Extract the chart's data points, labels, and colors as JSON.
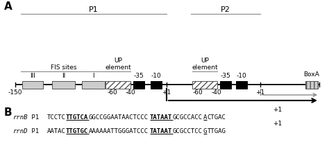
{
  "fig_width": 4.74,
  "fig_height": 2.15,
  "dpi": 100,
  "panel_A_label": "A",
  "panel_B_label": "B",
  "p1_label": "P1",
  "p2_label": "P2",
  "fis_label": "FIS sites",
  "up1_label": "UP\nelement",
  "up2_label": "UP\nelement",
  "boxa_label": "BoxA",
  "fis_labels": [
    "III",
    "II",
    "I"
  ],
  "minus35_1": "-35",
  "minus10_1": "-10",
  "plus1_1": "+1",
  "minus60_1": "-60",
  "minus40_1": "-40",
  "minus150_1": "-150",
  "minus35_2": "-35",
  "minus10_2": "-10",
  "plus1_2": "+1",
  "minus60_2": "-60",
  "minus40_2": "-40",
  "bg_color": "#ffffff",
  "rrnB_parts": [
    {
      "text": "TCCTC",
      "bold": false,
      "ul": false
    },
    {
      "text": "TTGTCA",
      "bold": true,
      "ul": true
    },
    {
      "text": "GGCCGGAATAACTCCC",
      "bold": false,
      "ul": false
    },
    {
      "text": "TATAAT",
      "bold": true,
      "ul": true
    },
    {
      "text": "GCGCCACC",
      "bold": false,
      "ul": false
    },
    {
      "text": "A",
      "bold": false,
      "ul": true
    },
    {
      "text": "CTGAC",
      "bold": false,
      "ul": false
    }
  ],
  "rrnD_parts": [
    {
      "text": "AATAC",
      "bold": false,
      "ul": false
    },
    {
      "text": "TTGTGC",
      "bold": true,
      "ul": true
    },
    {
      "text": "AAAAAATTGGGATCCC",
      "bold": false,
      "ul": false
    },
    {
      "text": "TATAAT",
      "bold": true,
      "ul": true
    },
    {
      "text": "GCGCCTCC",
      "bold": false,
      "ul": false
    },
    {
      "text": "G",
      "bold": false,
      "ul": true
    },
    {
      "text": "TTGAG",
      "bold": false,
      "ul": false
    }
  ]
}
